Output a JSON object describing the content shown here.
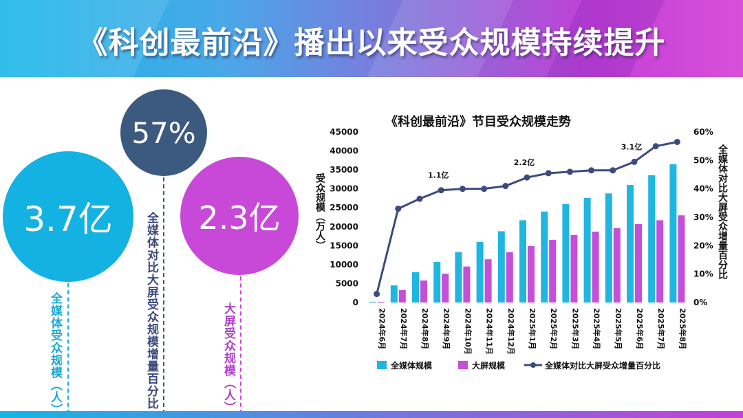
{
  "slide_title": "《科创最前沿》播出以来受众规模持续提升",
  "stats": {
    "total": {
      "value": "3.7亿",
      "label": "全媒体受众规模（人）",
      "color": "#13b2e3"
    },
    "increase": {
      "value": "57%",
      "label": "全媒体对比大屏受众规模增量百分比",
      "color": "#3c5a80"
    },
    "tv": {
      "value": "2.3亿",
      "label": "大屏受众规模（人）",
      "color": "#c849d8"
    }
  },
  "chart_data": {
    "type": "bar",
    "title": "《科创最前沿》节目受众规模走势",
    "ylabel": "受众规模（万人）",
    "y2label": "全媒体对比大屏受众增量百分比",
    "ylim": [
      0,
      45000
    ],
    "y2lim": [
      0,
      60
    ],
    "yticks": [
      "0",
      "5000",
      "10000",
      "15000",
      "20000",
      "25000",
      "30000",
      "35000",
      "40000",
      "45000"
    ],
    "y2ticks": [
      "0%",
      "10%",
      "20%",
      "30%",
      "40%",
      "50%",
      "60%"
    ],
    "categories": [
      "2024年6月",
      "2024年7月",
      "2024年8月",
      "2024年9月",
      "2024年10月",
      "2024年11月",
      "2024年12月",
      "2025年1月",
      "2025年2月",
      "2025年3月",
      "2025年4月",
      "2025年5月",
      "2025年6月",
      "2025年7月",
      "2025年8月"
    ],
    "series": [
      {
        "name": "全媒体规模",
        "kind": "bar",
        "color": "#1fb6e2",
        "values": [
          200,
          4500,
          8000,
          10700,
          13300,
          16000,
          18800,
          21700,
          24000,
          26000,
          27600,
          28800,
          31000,
          33600,
          36500
        ]
      },
      {
        "name": "大屏规模",
        "kind": "bar",
        "color": "#c54fd8",
        "values": [
          200,
          3300,
          5800,
          7600,
          9500,
          11400,
          13300,
          14900,
          16500,
          17800,
          18700,
          19600,
          20700,
          21700,
          23000
        ]
      },
      {
        "name": "全媒体对比大屏受众增量百分比",
        "kind": "line",
        "axis": "right",
        "color": "#3c4a7d",
        "values": [
          3,
          33,
          36.5,
          39.5,
          40,
          40,
          41,
          44,
          45.5,
          46,
          46.5,
          46.5,
          49.5,
          55,
          56.5
        ]
      }
    ],
    "annotations": [
      {
        "category_index": 3,
        "text": "1.1亿"
      },
      {
        "category_index": 7,
        "text": "2.2亿"
      },
      {
        "category_index": 12,
        "text": "3.1亿"
      }
    ]
  }
}
